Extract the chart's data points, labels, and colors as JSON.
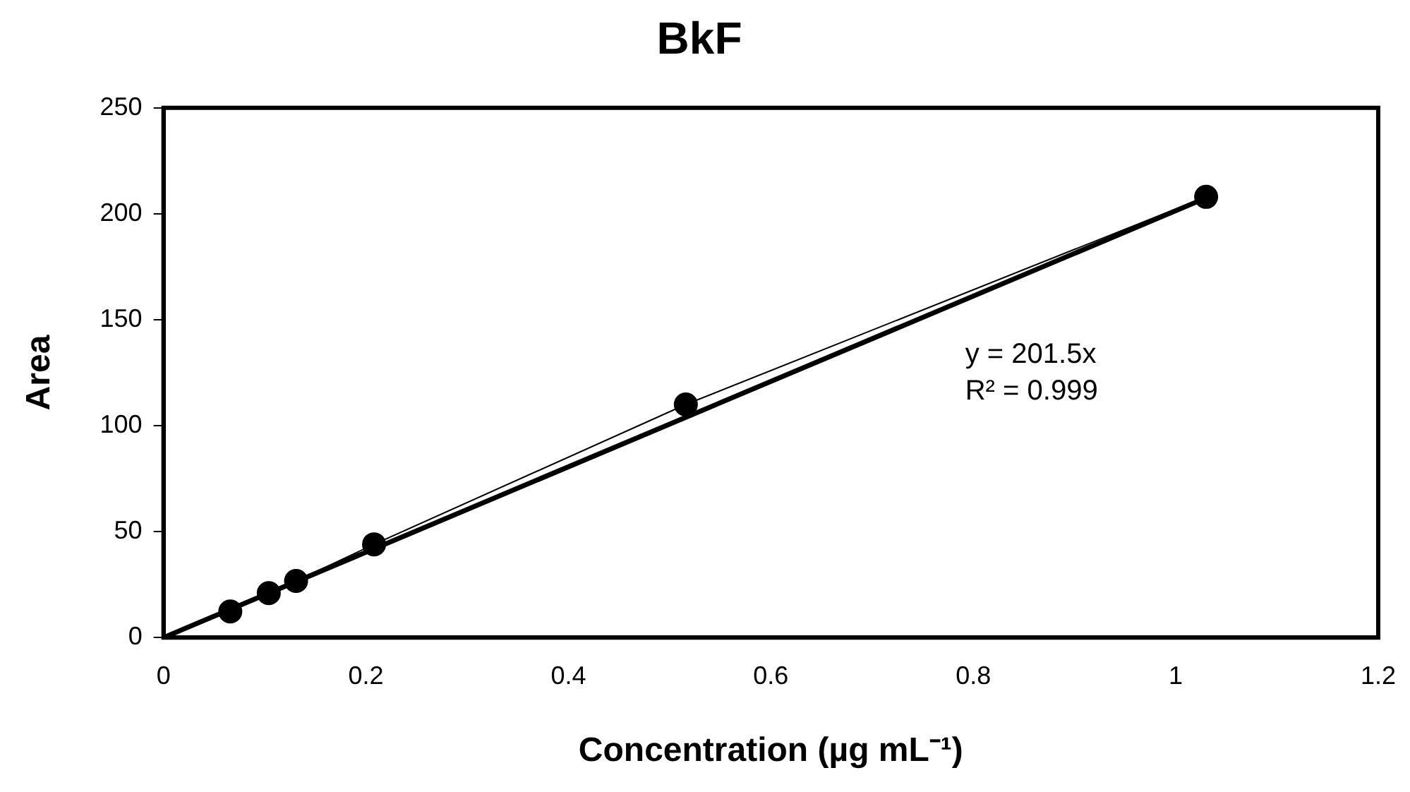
{
  "chart_data": {
    "type": "line",
    "title": "BkF",
    "xlabel": "Concentration (µg mL⁻¹)",
    "ylabel": "Area",
    "xlim": [
      0,
      1.2
    ],
    "xticks": [
      0,
      0.2,
      0.4,
      0.6,
      0.8,
      1,
      1.2
    ],
    "ylim": [
      0,
      250
    ],
    "yticks": [
      0,
      50,
      100,
      150,
      200,
      250
    ],
    "grid": false,
    "legend": false,
    "series": [
      {
        "type": "line",
        "marker": "circle",
        "color": "#000000",
        "x": [
          0.066,
          0.104,
          0.131,
          0.208,
          0.516,
          1.03
        ],
        "values": [
          12.3,
          21,
          26.7,
          44,
          110,
          208
        ]
      },
      {
        "type": "line",
        "marker": "none",
        "color": "#000000",
        "x": [
          0,
          1.03
        ],
        "values": [
          0,
          207.5
        ]
      }
    ],
    "annotations": [
      "y = 201.5x",
      "R² = 0.999"
    ]
  }
}
